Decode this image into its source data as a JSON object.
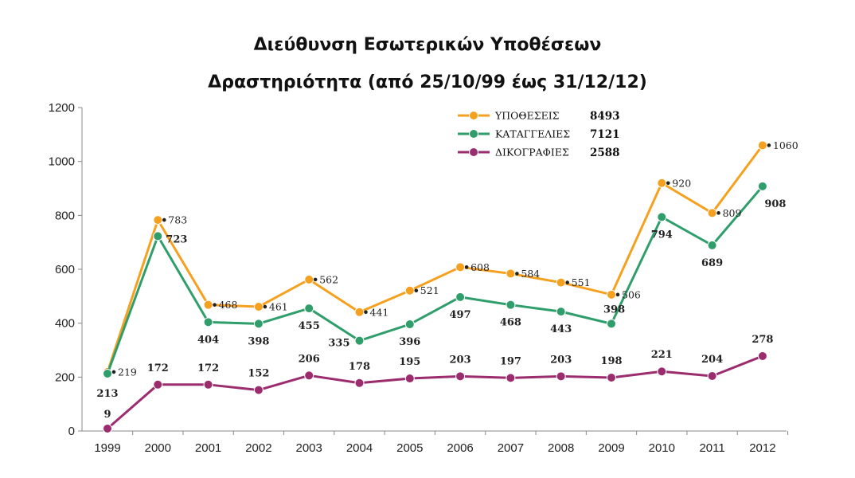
{
  "chart_data": {
    "type": "line",
    "title": "Διεύθυνση Εσωτερικών Υποθέσεων",
    "subtitle": "Δραστηριότητα (από 25/10/99 έως 31/12/12)",
    "categories": [
      "1999",
      "2000",
      "2001",
      "2002",
      "2003",
      "2004",
      "2005",
      "2006",
      "2007",
      "2008",
      "2009",
      "2010",
      "2011",
      "2012"
    ],
    "ylim": [
      0,
      1200
    ],
    "yticks": [
      0,
      200,
      400,
      600,
      800,
      1000,
      1200
    ],
    "legend_position": "top-center",
    "series": [
      {
        "name": "ΥΠΟΘΕΣΕΙΣ",
        "total": "8493",
        "color": "#f5a11f",
        "values": [
          219,
          783,
          468,
          461,
          562,
          441,
          521,
          608,
          584,
          551,
          506,
          920,
          809,
          1060
        ],
        "label_style": "normal"
      },
      {
        "name": "ΚΑΤΑΓΓΕΛΙΕΣ",
        "total": "7121",
        "color": "#2f9e6b",
        "values": [
          213,
          723,
          404,
          398,
          455,
          335,
          396,
          497,
          468,
          443,
          398,
          794,
          689,
          908
        ],
        "label_style": "bold"
      },
      {
        "name": "ΔΙΚΟΓΡΑΦΙΕΣ",
        "total": "2588",
        "color": "#9b2d6f",
        "values": [
          9,
          172,
          172,
          152,
          206,
          178,
          195,
          203,
          197,
          203,
          198,
          221,
          204,
          278
        ],
        "label_style": "bold"
      }
    ]
  }
}
